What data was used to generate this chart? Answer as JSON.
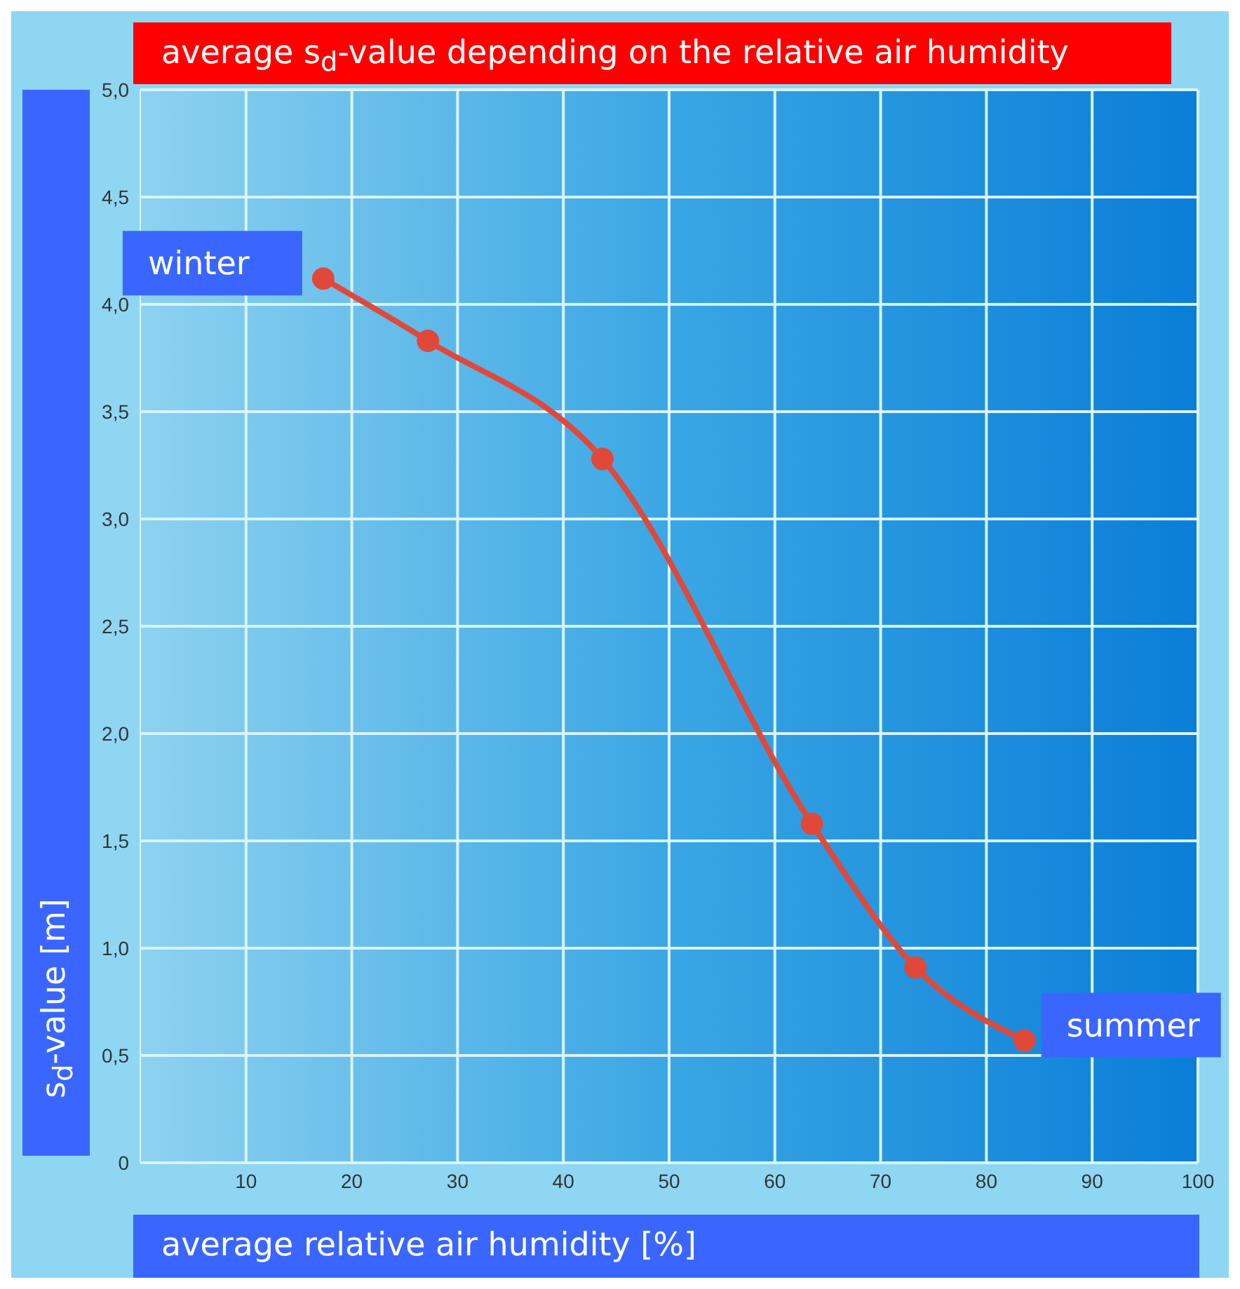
{
  "chart_data": {
    "type": "line",
    "title": "average s$_{d}$-value depending on the relative air humidity",
    "xlabel": "average relative air humidity [%]",
    "ylabel": "s$_{d}$-value [m]",
    "x": [
      17.3,
      27.2,
      43.7,
      63.5,
      73.3,
      83.6
    ],
    "series": [
      {
        "color": "#e0493a",
        "values": [
          4.12,
          3.83,
          3.28,
          1.58,
          0.91,
          0.57
        ]
      }
    ],
    "xlim": [
      0,
      100
    ],
    "xticks": [
      10,
      20,
      30,
      40,
      50,
      60,
      70,
      80,
      90,
      100
    ],
    "ylim": [
      0,
      5
    ],
    "yticks": [
      {
        "value": 0,
        "label": "0"
      },
      {
        "value": 0.5,
        "label": "0,5"
      },
      {
        "value": 1,
        "label": "1,0"
      },
      {
        "value": 1.5,
        "label": "1,5"
      },
      {
        "value": 2,
        "label": "2,0"
      },
      {
        "value": 2.5,
        "label": "2,5"
      },
      {
        "value": 3,
        "label": "3,0"
      },
      {
        "value": 3.5,
        "label": "3,5"
      },
      {
        "value": 4,
        "label": "4,0"
      },
      {
        "value": 4.5,
        "label": "4,5"
      },
      {
        "value": 5,
        "label": "5,0"
      }
    ],
    "annotations": [
      {
        "text": "winter",
        "x": 17.3,
        "y": 4.12
      },
      {
        "text": "summer",
        "x": 83.6,
        "y": 0.57
      }
    ],
    "grid": true,
    "marker": "circle",
    "line_style": "solid"
  }
}
